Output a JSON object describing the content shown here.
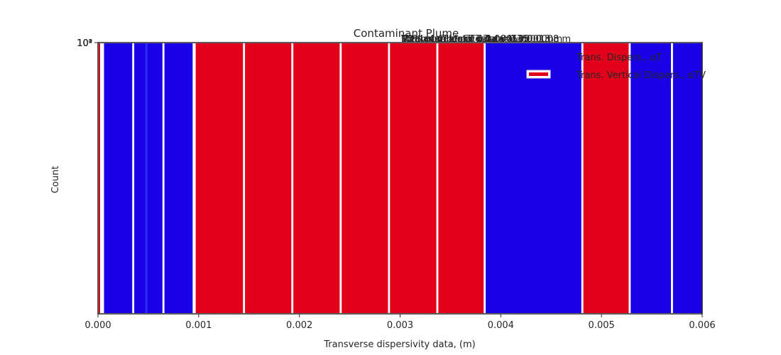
{
  "chart_data": {
    "type": "bar",
    "title": "Contaminant Plume",
    "xlabel": "Transverse dispersivity data, (m)",
    "ylabel": "Count",
    "xlim": [
      0,
      0.006
    ],
    "x_ticks": [
      "0.000",
      "0.001",
      "0.002",
      "0.003",
      "0.004",
      "0.005",
      "0.006"
    ],
    "y_ticks": [
      "10³",
      "10²",
      "10¹",
      "10⁰"
    ],
    "y_scale": "log",
    "grid": false,
    "legend_position": "top-right",
    "annotations": [
      "Total number of data = 135",
      "Total number of data = 135",
      "Mean value of αT data = 0.0013 m",
      "Median value of αT data = 0.0008 m",
      "Min value of αT data = 0.0000 m",
      "90% of αT data < 0.0045 m",
      "10% of αT data < 0.0001 m",
      "Total number of data = 135"
    ],
    "series": [
      {
        "name": "Trans. Dispers., αT",
        "color": "#1a00e6",
        "bars": [
          {
            "x0": 6e-05,
            "x1": 0.00034
          },
          {
            "x0": 0.00036,
            "x1": 0.00064
          },
          {
            "x0": 0.00066,
            "x1": 0.00094
          },
          {
            "x0": 0.00385,
            "x1": 0.0048
          },
          {
            "x0": 0.00529,
            "x1": 0.00569
          },
          {
            "x0": 0.00571,
            "x1": 0.006
          }
        ]
      },
      {
        "name": "Trans. Vertical Dispers., αTV",
        "color": "#e3001b",
        "bars": [
          {
            "x0": 0.00097,
            "x1": 0.00144
          },
          {
            "x0": 0.00146,
            "x1": 0.00192
          },
          {
            "x0": 0.00194,
            "x1": 0.0024
          },
          {
            "x0": 0.00242,
            "x1": 0.00288
          },
          {
            "x0": 0.0029,
            "x1": 0.00336
          },
          {
            "x0": 0.00338,
            "x1": 0.00383
          },
          {
            "x0": 0.00482,
            "x1": 0.00527
          }
        ]
      }
    ]
  }
}
